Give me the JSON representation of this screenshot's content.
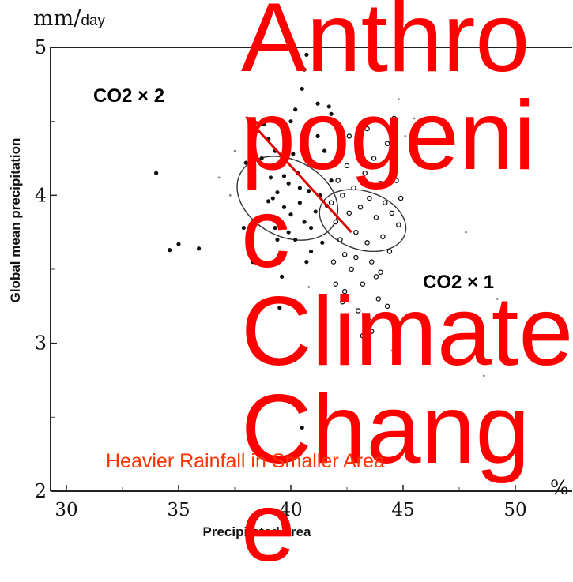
{
  "title": "Anthropogenic Climate Change",
  "y_unit_main": "mm/",
  "y_unit_sub": "day",
  "ylabel": "Global mean precipitation",
  "xlabel": "Precipitated area",
  "x_percent": "%",
  "annotations": {
    "co2x2": "CO2 × 2",
    "co2x1": "CO2 × 1",
    "caption": "Heavier Rainfall in Smaller Area"
  },
  "colors": {
    "title": "#ff0000",
    "caption": "#ff3300",
    "arrow": "#e00000",
    "points": "#111111"
  },
  "chart_data": {
    "type": "scatter",
    "xlabel": "Precipitated area",
    "ylabel": "Global mean precipitation",
    "xlim": [
      30,
      50
    ],
    "ylim": [
      2,
      5
    ],
    "x_ticks": [
      30,
      35,
      40,
      45,
      50
    ],
    "y_ticks": [
      2,
      3,
      4,
      5
    ],
    "x_tick_labels": [
      "30",
      "35",
      "40",
      "45",
      "50"
    ],
    "y_tick_labels": [
      "2",
      "3",
      "4",
      "5"
    ],
    "series": [
      {
        "name": "CO2 × 2",
        "marker": "filled",
        "points": [
          [
            34.0,
            4.15
          ],
          [
            34.6,
            3.63
          ],
          [
            35.0,
            3.67
          ],
          [
            35.9,
            3.64
          ],
          [
            38.2,
            4.05
          ],
          [
            38.5,
            3.83
          ],
          [
            38.3,
            3.55
          ],
          [
            38.6,
            3.85
          ],
          [
            38.9,
            3.53
          ],
          [
            38.7,
            4.25
          ],
          [
            39.0,
            3.96
          ],
          [
            39.1,
            4.12
          ],
          [
            39.3,
            3.78
          ],
          [
            39.4,
            4.02
          ],
          [
            39.5,
            3.6
          ],
          [
            39.6,
            4.2
          ],
          [
            39.7,
            3.92
          ],
          [
            39.8,
            4.33
          ],
          [
            39.9,
            3.75
          ],
          [
            39.2,
            3.98
          ],
          [
            39.9,
            4.08
          ],
          [
            40.0,
            3.87
          ],
          [
            40.1,
            4.28
          ],
          [
            40.2,
            3.7
          ],
          [
            40.3,
            4.15
          ],
          [
            40.4,
            3.95
          ],
          [
            40.5,
            4.35
          ],
          [
            40.6,
            3.82
          ],
          [
            40.7,
            4.45
          ],
          [
            40.8,
            4.03
          ],
          [
            40.9,
            3.62
          ],
          [
            41.0,
            4.22
          ],
          [
            41.1,
            3.89
          ],
          [
            41.2,
            4.4
          ],
          [
            41.3,
            4.0
          ],
          [
            41.4,
            3.68
          ],
          [
            41.5,
            4.3
          ],
          [
            41.6,
            3.93
          ],
          [
            41.7,
            4.6
          ],
          [
            41.8,
            4.1
          ],
          [
            40.2,
            4.58
          ],
          [
            40.5,
            4.72
          ],
          [
            40.6,
            4.85
          ],
          [
            40.7,
            4.95
          ],
          [
            40.3,
            4.9
          ],
          [
            41.2,
            4.62
          ],
          [
            41.8,
            4.55
          ],
          [
            39.5,
            3.24
          ],
          [
            40.5,
            2.43
          ],
          [
            39.0,
            4.38
          ],
          [
            38.0,
            4.22
          ],
          [
            37.9,
            3.78
          ],
          [
            39.6,
            3.45
          ],
          [
            40.7,
            3.55
          ],
          [
            38.8,
            4.48
          ],
          [
            41.0,
            4.5
          ],
          [
            40.0,
            4.5
          ],
          [
            39.3,
            4.3
          ],
          [
            40.4,
            4.05
          ],
          [
            39.7,
            4.13
          ],
          [
            40.9,
            3.78
          ],
          [
            39.4,
            3.7
          ]
        ]
      },
      {
        "name": "CO2 × 1",
        "marker": "open",
        "points": [
          [
            41.8,
            3.95
          ],
          [
            42.0,
            3.82
          ],
          [
            42.1,
            4.1
          ],
          [
            42.2,
            3.7
          ],
          [
            42.3,
            4.0
          ],
          [
            42.4,
            3.6
          ],
          [
            42.5,
            4.2
          ],
          [
            42.6,
            3.88
          ],
          [
            42.7,
            3.5
          ],
          [
            42.8,
            4.05
          ],
          [
            42.9,
            3.75
          ],
          [
            43.0,
            4.3
          ],
          [
            43.1,
            3.92
          ],
          [
            43.2,
            3.4
          ],
          [
            43.3,
            4.15
          ],
          [
            43.4,
            3.68
          ],
          [
            43.5,
            3.98
          ],
          [
            43.6,
            3.55
          ],
          [
            43.7,
            4.25
          ],
          [
            43.8,
            3.85
          ],
          [
            43.9,
            3.3
          ],
          [
            44.0,
            4.08
          ],
          [
            44.1,
            3.72
          ],
          [
            44.2,
            3.95
          ],
          [
            44.3,
            4.35
          ],
          [
            44.4,
            3.62
          ],
          [
            44.5,
            3.88
          ],
          [
            42.3,
            3.28
          ],
          [
            43.0,
            3.22
          ],
          [
            43.5,
            3.15
          ],
          [
            42.0,
            3.4
          ],
          [
            43.2,
            3.05
          ],
          [
            44.0,
            3.48
          ],
          [
            42.6,
            4.4
          ],
          [
            44.7,
            4.1
          ],
          [
            44.8,
            3.8
          ],
          [
            44.6,
            4.52
          ],
          [
            43.8,
            3.45
          ],
          [
            42.9,
            3.58
          ],
          [
            44.3,
            3.25
          ],
          [
            41.9,
            3.55
          ],
          [
            43.4,
            4.45
          ],
          [
            42.4,
            3.35
          ],
          [
            44.9,
            3.98
          ],
          [
            43.6,
            3.08
          ]
        ]
      },
      {
        "name": "",
        "marker": "faint",
        "points": [
          [
            36.8,
            4.12
          ],
          [
            37.5,
            4.3
          ],
          [
            37.3,
            4.0
          ],
          [
            40.8,
            3.38
          ],
          [
            44.5,
            2.95
          ],
          [
            45.5,
            4.52
          ],
          [
            44.8,
            4.65
          ],
          [
            45.1,
            4.4
          ],
          [
            47.8,
            3.75
          ],
          [
            48.6,
            2.78
          ],
          [
            49.2,
            3.3
          ]
        ]
      }
    ],
    "ellipses": [
      {
        "cx": 39.85,
        "cy": 3.98,
        "rx": 1.7,
        "ry": 0.36,
        "angle": -62
      },
      {
        "cx": 43.2,
        "cy": 3.83,
        "rx": 1.3,
        "ry": 0.3,
        "angle": -72
      }
    ],
    "arrow": {
      "from": [
        42.7,
        3.75
      ],
      "to": [
        38.0,
        4.53
      ]
    },
    "grid": false,
    "legend": "none"
  }
}
